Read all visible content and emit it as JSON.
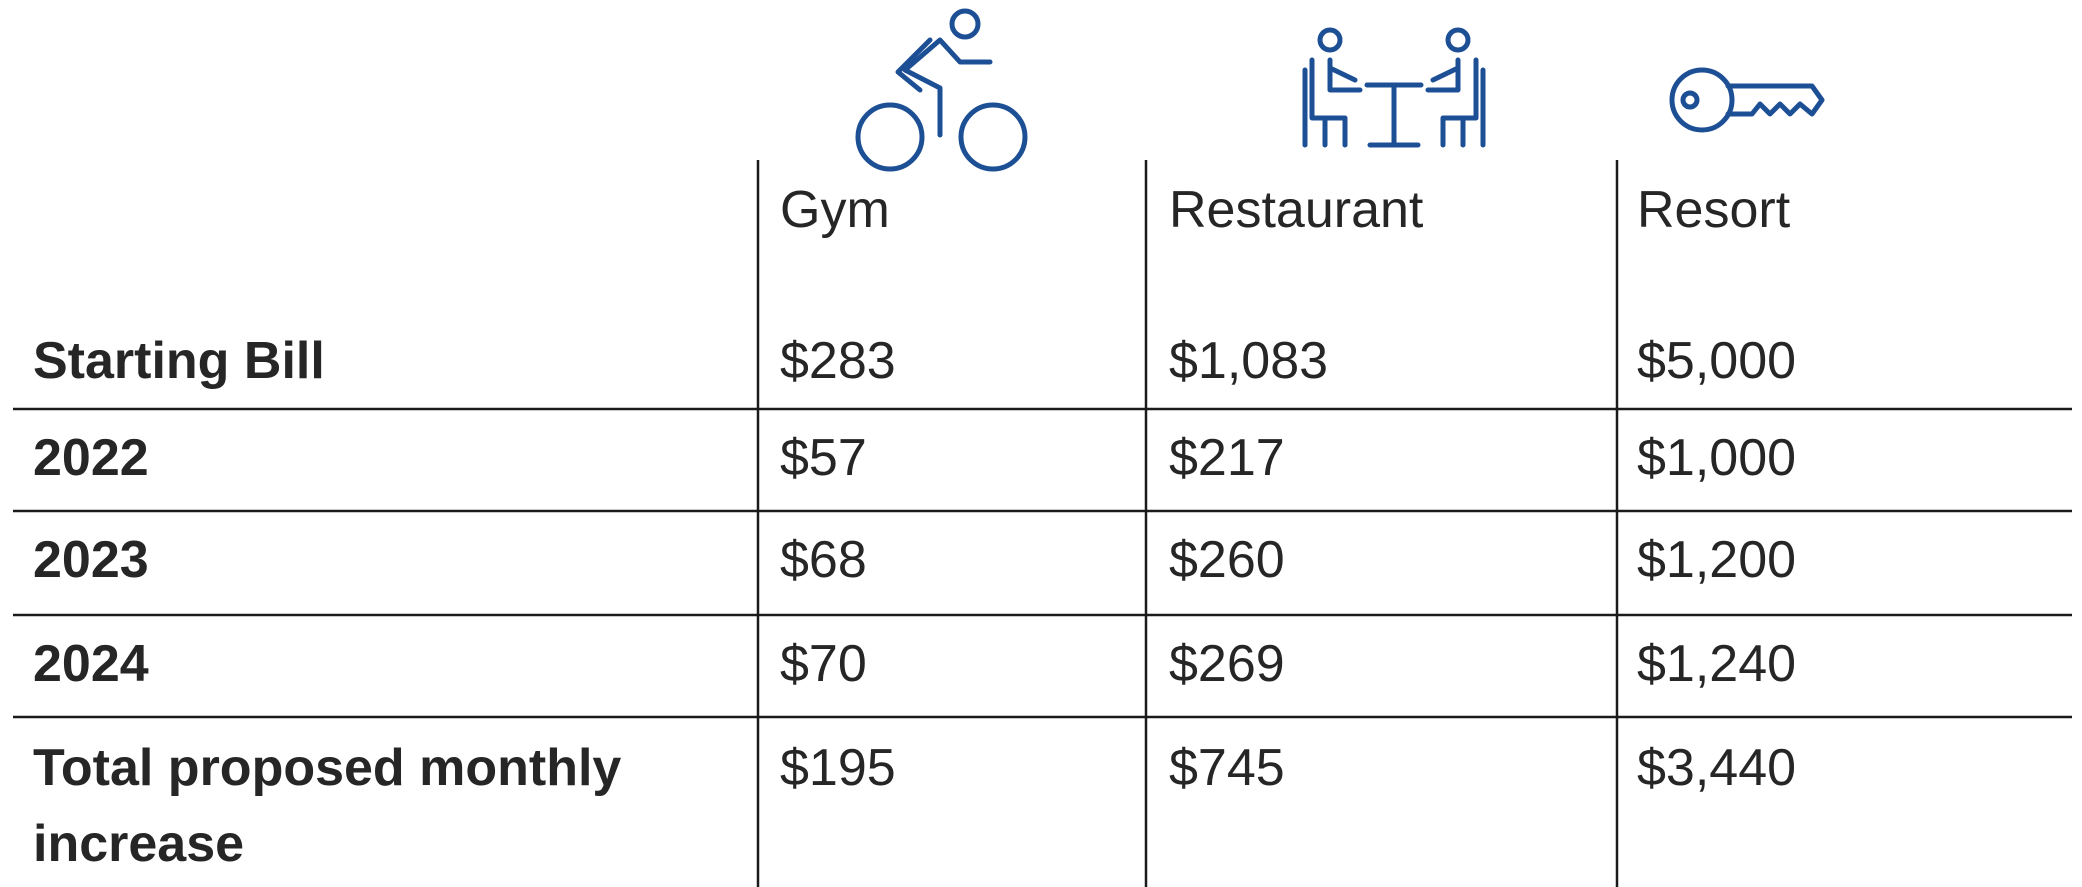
{
  "table": {
    "columns": [
      "Gym",
      "Restaurant",
      "Resort"
    ],
    "rows": [
      {
        "label": "Starting Bill",
        "cells": [
          "$283",
          "$1,083",
          "$5,000"
        ]
      },
      {
        "label": "2022",
        "cells": [
          "$57",
          "$217",
          "$1,000"
        ]
      },
      {
        "label": "2023",
        "cells": [
          "$68",
          "$260",
          "$1,200"
        ]
      },
      {
        "label": "2024",
        "cells": [
          "$70",
          "$269",
          "$1,240"
        ]
      },
      {
        "label": "Total proposed monthly increase",
        "cells": [
          "$195",
          "$745",
          "$3,440"
        ]
      }
    ]
  }
}
